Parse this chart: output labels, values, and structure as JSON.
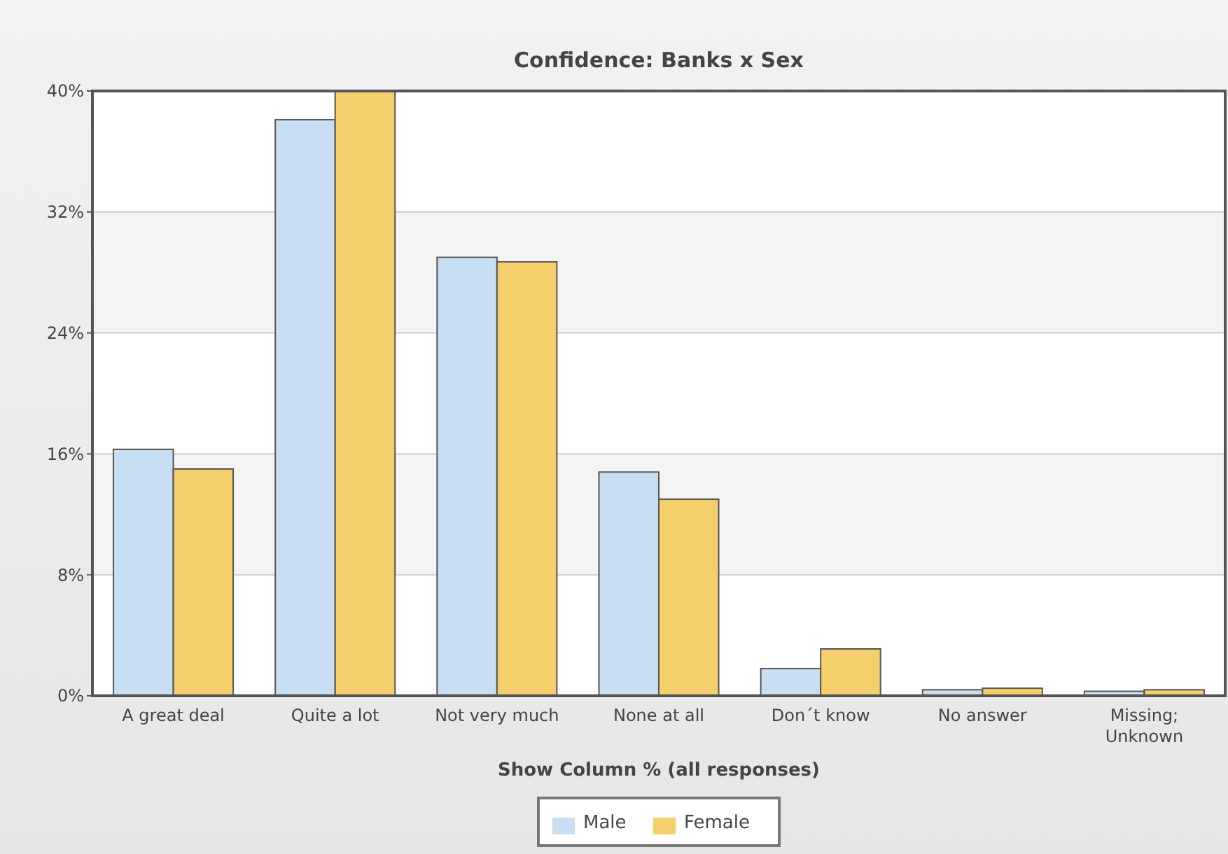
{
  "chart_data": {
    "type": "bar",
    "title": "Confidence: Banks x Sex",
    "xlabel": "Show Column % (all responses)",
    "categories": [
      "A great deal",
      "Quite a lot",
      "Not very much",
      "None at all",
      "Don´t know",
      "No answer",
      "Missing; Unknown"
    ],
    "series": [
      {
        "name": "Male",
        "color": "#c8def2",
        "values": [
          16.3,
          38.1,
          29.0,
          14.8,
          1.8,
          0.4,
          0.3
        ]
      },
      {
        "name": "Female",
        "color": "#f5cf6b",
        "values": [
          15.0,
          40.0,
          28.7,
          13.0,
          3.1,
          0.5,
          0.4
        ]
      }
    ],
    "ylim": [
      0,
      40
    ],
    "yticks": [
      {
        "value": 0,
        "label": "0%"
      },
      {
        "value": 8,
        "label": "8%"
      },
      {
        "value": 16,
        "label": "16%"
      },
      {
        "value": 24,
        "label": "24%"
      },
      {
        "value": 32,
        "label": "32%"
      },
      {
        "value": 40,
        "label": "40%"
      }
    ],
    "grid": "y",
    "legend": "bottom"
  }
}
